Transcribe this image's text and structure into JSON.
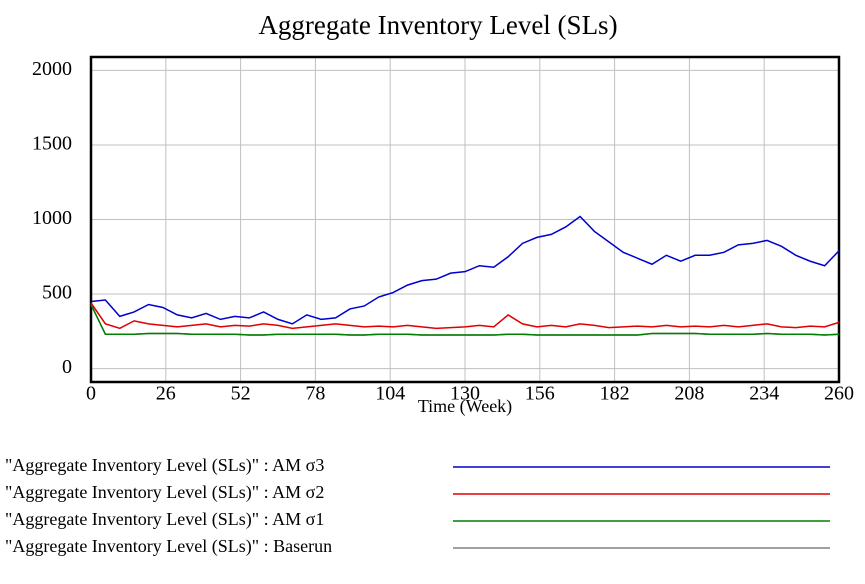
{
  "chart_data": {
    "type": "line",
    "title": "Aggregate Inventory Level (SLs)",
    "xlabel": "Time (Week)",
    "x": [
      0,
      5,
      10,
      15,
      20,
      25,
      30,
      35,
      40,
      45,
      50,
      55,
      60,
      65,
      70,
      75,
      80,
      85,
      90,
      95,
      100,
      105,
      110,
      115,
      120,
      125,
      130,
      135,
      140,
      145,
      150,
      155,
      160,
      165,
      170,
      175,
      180,
      185,
      190,
      195,
      200,
      205,
      210,
      215,
      220,
      225,
      230,
      235,
      240,
      245,
      250,
      255,
      260
    ],
    "series": [
      {
        "name": "\"Aggregate Inventory Level (SLs)\" : AM σ3",
        "color": "#0000cc",
        "values": [
          450,
          460,
          350,
          380,
          430,
          410,
          360,
          340,
          370,
          330,
          350,
          340,
          380,
          330,
          300,
          360,
          330,
          340,
          400,
          420,
          480,
          510,
          560,
          590,
          600,
          640,
          650,
          690,
          680,
          750,
          840,
          880,
          900,
          950,
          1020,
          920,
          850,
          780,
          740,
          700,
          760,
          720,
          760,
          760,
          780,
          830,
          840,
          860,
          820,
          760,
          720,
          690,
          790
        ]
      },
      {
        "name": "\"Aggregate Inventory Level (SLs)\" : AM σ2",
        "color": "#e00000",
        "values": [
          440,
          300,
          270,
          320,
          300,
          290,
          280,
          290,
          300,
          280,
          290,
          285,
          300,
          290,
          270,
          280,
          290,
          300,
          290,
          280,
          285,
          280,
          290,
          280,
          270,
          275,
          280,
          290,
          280,
          360,
          300,
          280,
          290,
          280,
          300,
          290,
          275,
          280,
          285,
          280,
          290,
          280,
          285,
          280,
          290,
          280,
          290,
          300,
          280,
          275,
          285,
          280,
          310
        ]
      },
      {
        "name": "\"Aggregate Inventory Level (SLs)\" : AM σ1",
        "color": "#008000",
        "values": [
          430,
          230,
          230,
          230,
          235,
          235,
          235,
          230,
          230,
          230,
          230,
          225,
          225,
          230,
          230,
          230,
          230,
          230,
          225,
          225,
          230,
          230,
          230,
          225,
          225,
          225,
          225,
          225,
          225,
          230,
          230,
          225,
          225,
          225,
          225,
          225,
          225,
          225,
          225,
          235,
          235,
          235,
          235,
          230,
          230,
          230,
          230,
          235,
          230,
          230,
          230,
          225,
          230
        ]
      },
      {
        "name": "\"Aggregate Inventory Level (SLs)\" : Baserun",
        "color": "#808080",
        "values": [
          430,
          230,
          230,
          230,
          235,
          235,
          235,
          230,
          230,
          230,
          230,
          225,
          225,
          230,
          230,
          230,
          230,
          230,
          225,
          225,
          230,
          230,
          230,
          225,
          225,
          225,
          225,
          225,
          225,
          230,
          230,
          225,
          225,
          225,
          225,
          225,
          225,
          225,
          225,
          235,
          235,
          235,
          235,
          230,
          230,
          230,
          230,
          235,
          230,
          230,
          230,
          225,
          230
        ]
      }
    ],
    "xlim": [
      0,
      260
    ],
    "xticks": [
      0,
      26,
      52,
      78,
      104,
      130,
      156,
      182,
      208,
      234,
      260
    ],
    "ylim": [
      -90,
      2090
    ],
    "yticks": [
      0,
      500,
      1000,
      1500,
      2000
    ],
    "grid": true
  }
}
